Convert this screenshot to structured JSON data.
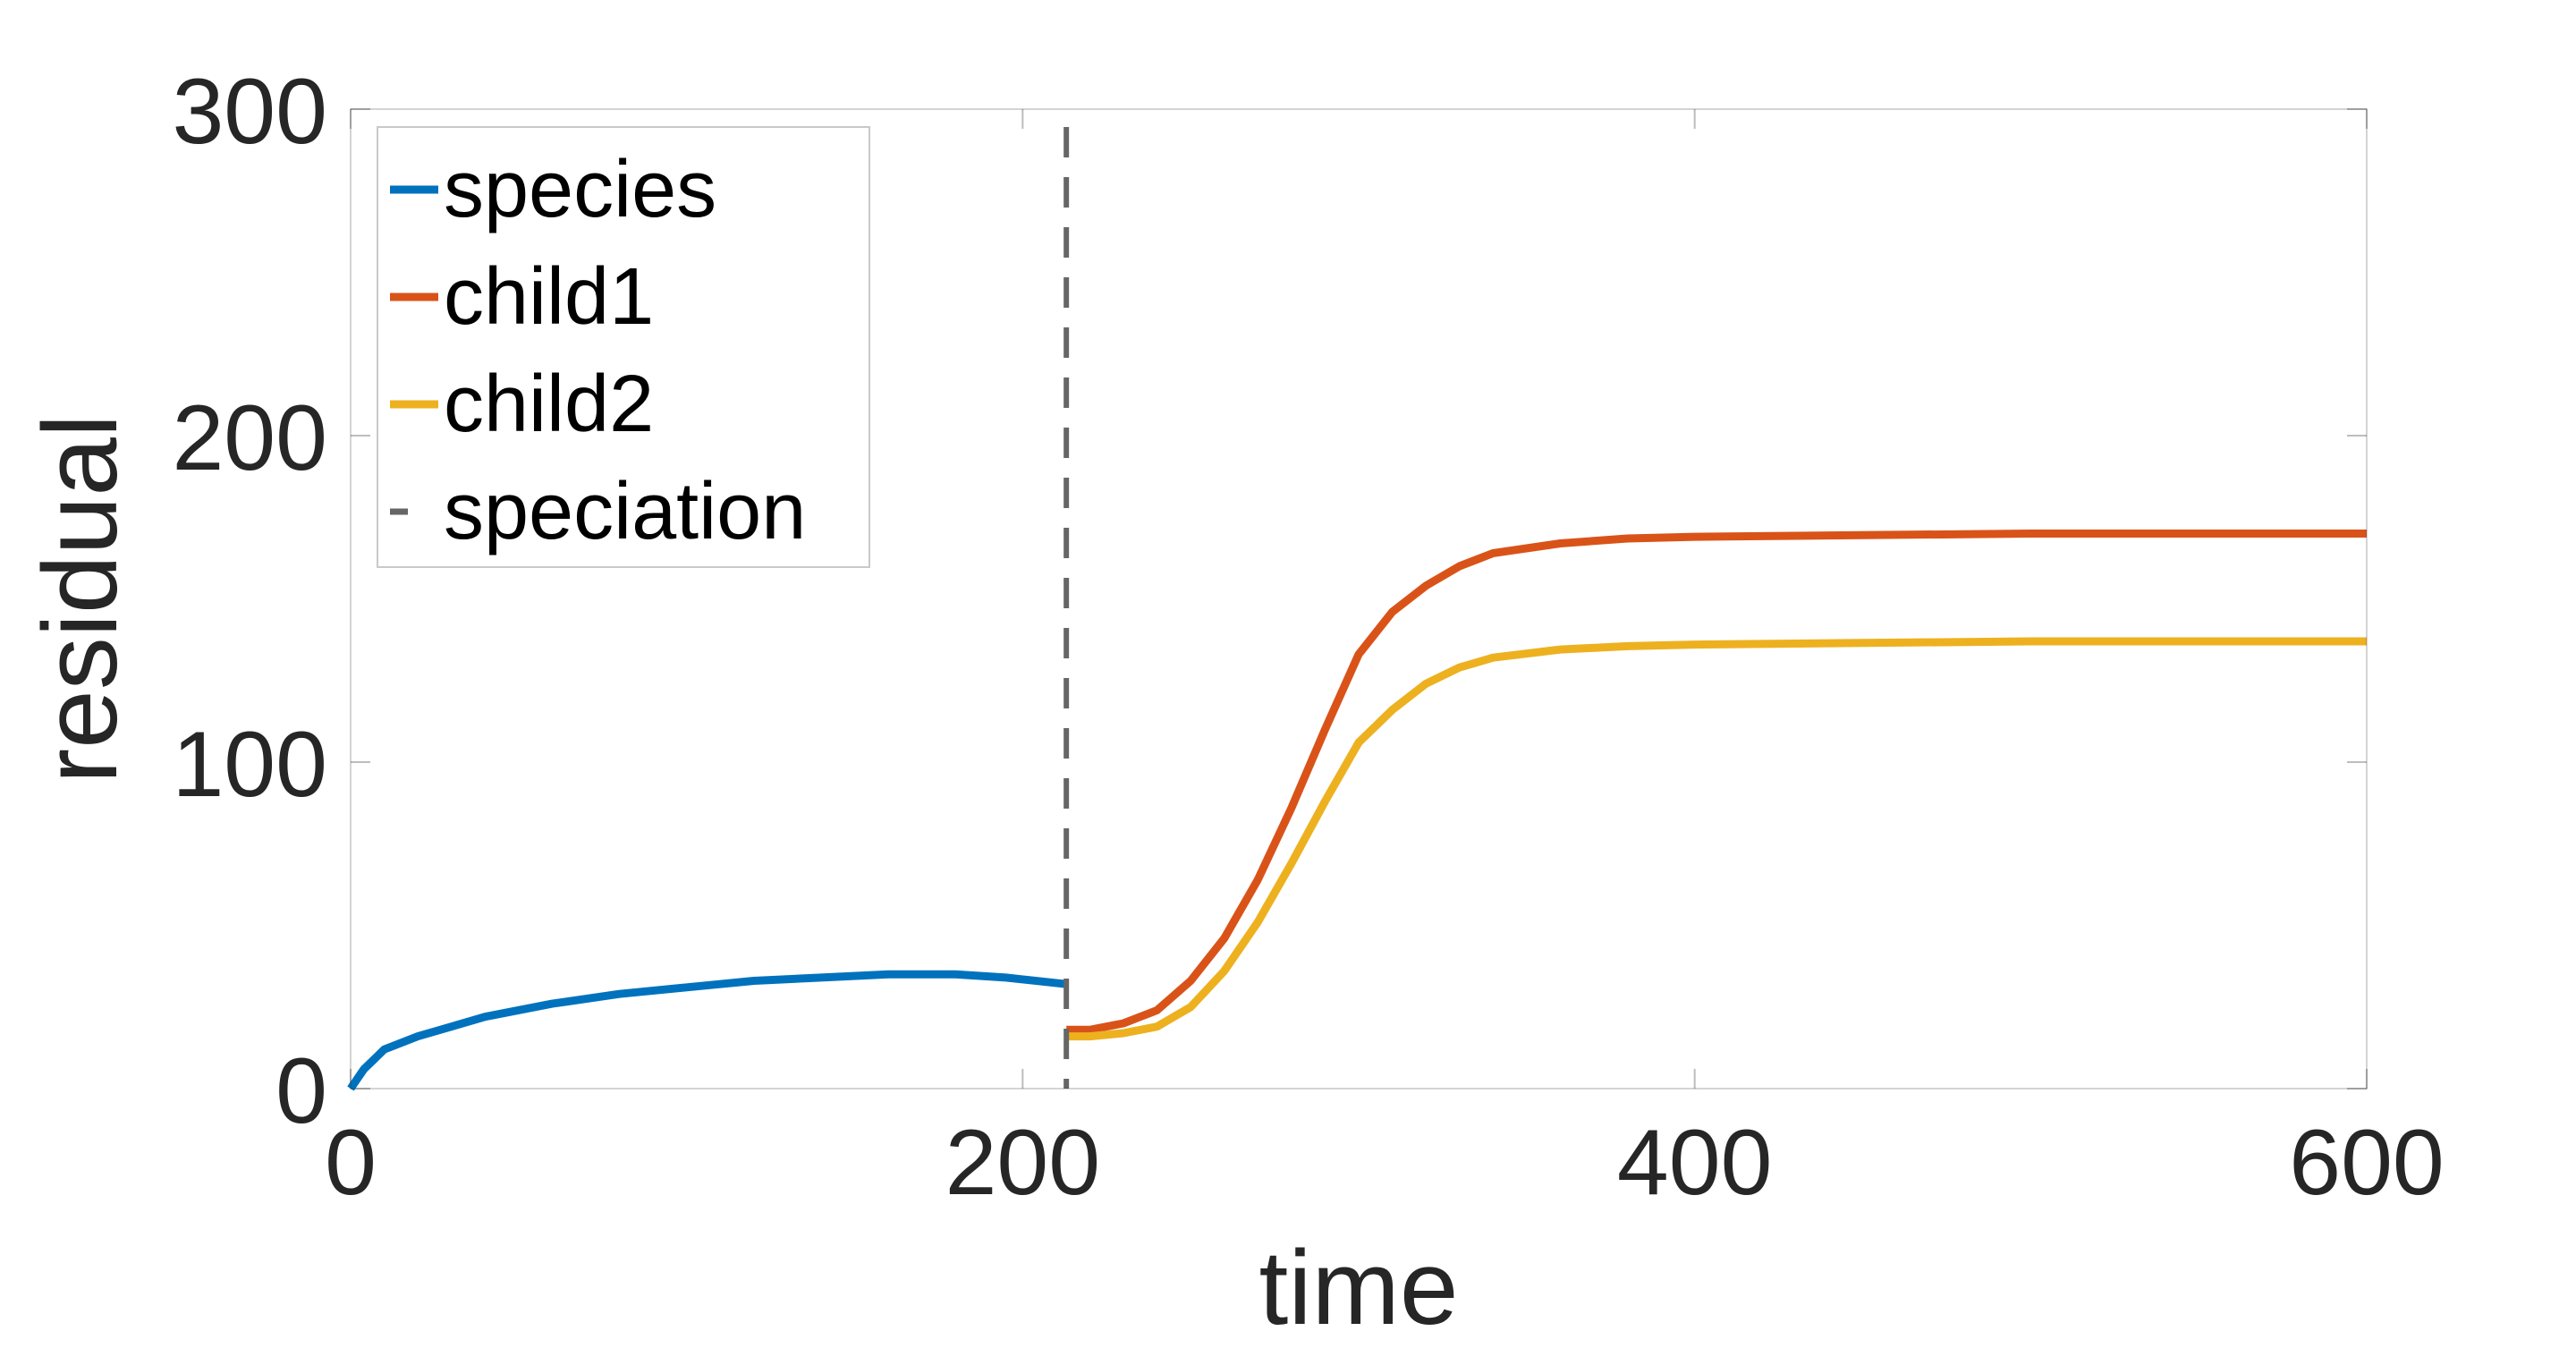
{
  "chart_data": {
    "type": "line",
    "title": "",
    "xlabel": "time",
    "ylabel": "residual",
    "xlim": [
      0,
      600
    ],
    "ylim": [
      0,
      300
    ],
    "xticks": [
      "0",
      "200",
      "400",
      "600"
    ],
    "yticks": [
      "0",
      "100",
      "200",
      "300"
    ],
    "legend_position": "top-left",
    "colors": {
      "species": "#0072BD",
      "child1": "#D95319",
      "child2": "#EDB120",
      "speciation": "#666666"
    },
    "series": [
      {
        "name": "species",
        "x": [
          0,
          2,
          4,
          7,
          10,
          20,
          30,
          40,
          60,
          80,
          100,
          120,
          140,
          160,
          170,
          180,
          195,
          213
        ],
        "values": [
          0,
          3,
          6,
          9,
          12,
          16,
          19,
          22,
          26,
          29,
          31,
          33,
          34,
          35,
          35,
          35,
          34,
          32
        ]
      },
      {
        "name": "child1",
        "x": [
          213,
          220,
          230,
          240,
          250,
          260,
          270,
          280,
          290,
          300,
          310,
          320,
          330,
          340,
          360,
          380,
          400,
          450,
          500,
          550,
          600
        ],
        "values": [
          18,
          18,
          20,
          24,
          33,
          46,
          64,
          86,
          110,
          133,
          146,
          154,
          160,
          164,
          167,
          168.5,
          169,
          169.5,
          170,
          170,
          170
        ]
      },
      {
        "name": "child2",
        "x": [
          213,
          220,
          230,
          240,
          250,
          260,
          270,
          280,
          290,
          300,
          310,
          320,
          330,
          340,
          360,
          380,
          400,
          450,
          500,
          550,
          600
        ],
        "values": [
          16,
          16,
          17,
          19,
          25,
          36,
          51,
          69,
          88,
          106,
          116,
          124,
          129,
          132,
          134.5,
          135.5,
          136,
          136.5,
          137,
          137,
          137
        ]
      }
    ],
    "vlines": [
      {
        "name": "speciation",
        "x": 213
      }
    ],
    "legend": [
      "species",
      "child1",
      "child2",
      "speciation"
    ]
  }
}
